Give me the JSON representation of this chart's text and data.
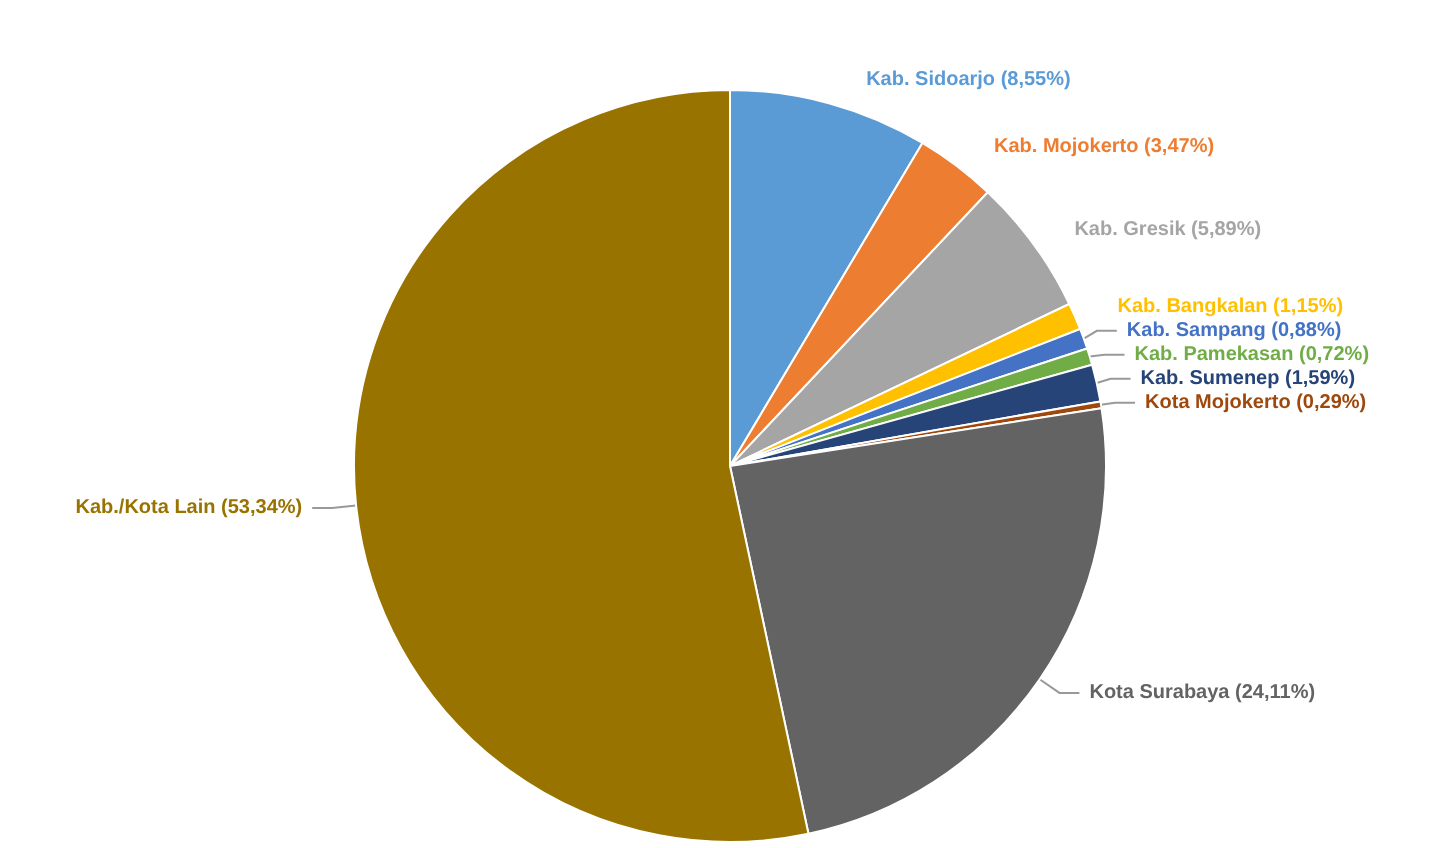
{
  "chart_data": {
    "type": "pie",
    "categories": [
      "Kab. Sidoarjo",
      "Kab. Mojokerto",
      "Kab. Gresik",
      "Kab. Bangkalan",
      "Kab. Sampang",
      "Kab. Pamekasan",
      "Kab. Sumenep",
      "Kota Mojokerto",
      "Kota Surabaya",
      "Kab./Kota Lain"
    ],
    "values": [
      8.55,
      3.47,
      5.89,
      1.15,
      0.88,
      0.72,
      1.59,
      0.29,
      24.11,
      53.34
    ],
    "value_labels": [
      "(8,55%)",
      "(3,47%)",
      "(5,89%)",
      "(1,15%)",
      "(0,88%)",
      "(0,72%)",
      "(1,59%)",
      "(0,29%)",
      "(24,11%)",
      "(53,34%)"
    ],
    "colors": [
      "#5b9bd5",
      "#ed7d31",
      "#a5a5a5",
      "#ffc000",
      "#4472c4",
      "#70ad47",
      "#264478",
      "#9e480e",
      "#636363",
      "#997300"
    ],
    "legend": false
  }
}
